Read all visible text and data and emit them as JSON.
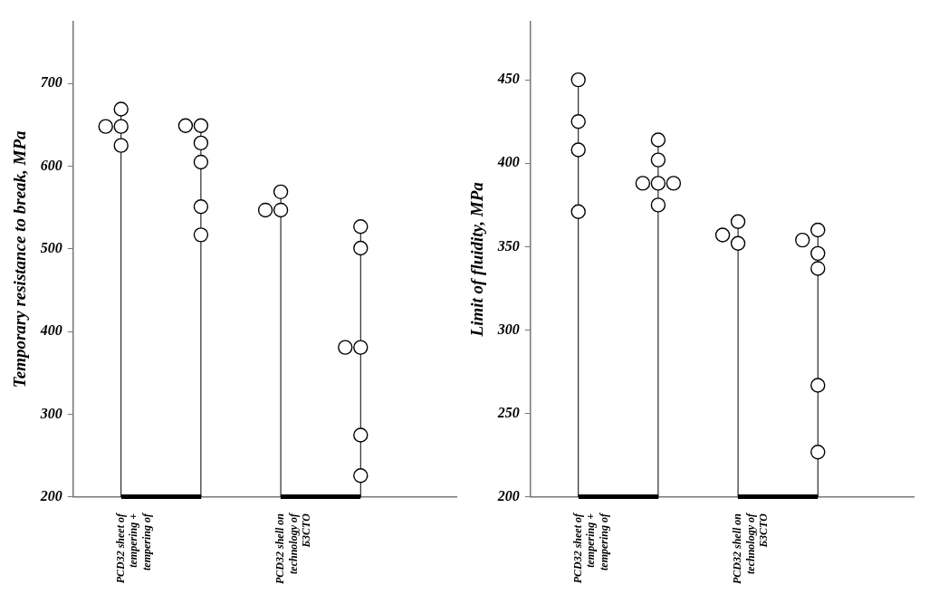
{
  "chart_data": [
    {
      "type": "lollipop",
      "ylabel": "Temporary resistance to break, MPa",
      "marker": "circle",
      "categories": [
        "PCD32 sheet of tempering + tempering of",
        null,
        "PCD32 shell on technology of Б3СТО",
        null
      ],
      "ylim": [
        200,
        775
      ],
      "yticks": [
        200,
        300,
        400,
        500,
        600,
        700
      ],
      "series": [
        {
          "color": "#000000",
          "values": [
            669,
            649,
            569,
            527
          ]
        },
        {
          "color": "#000000",
          "values": [
            648,
            649,
            547,
            501
          ]
        },
        {
          "color": "#000000",
          "values": [
            648,
            628,
            547,
            381
          ]
        },
        {
          "color": "#000000",
          "values": [
            625,
            605,
            null,
            381
          ]
        },
        {
          "color": "#000000",
          "values": [
            null,
            551,
            null,
            275
          ]
        },
        {
          "color": "#000000",
          "values": [
            null,
            517,
            null,
            226
          ]
        }
      ]
    },
    {
      "type": "lollipop",
      "ylabel": "Limit of fluidity, MPa",
      "marker": "circle",
      "categories": [
        "PCD32 sheet of tempering + tempering of",
        null,
        "PCD32 shell on technology of Б3СТО",
        null
      ],
      "ylim": [
        200,
        485
      ],
      "yticks": [
        200,
        250,
        300,
        350,
        400,
        450
      ],
      "series": [
        {
          "color": "#000000",
          "values": [
            450,
            414,
            365,
            360
          ]
        },
        {
          "color": "#000000",
          "values": [
            425,
            402,
            357,
            354
          ]
        },
        {
          "color": "#000000",
          "values": [
            408,
            388,
            352,
            346
          ]
        },
        {
          "color": "#000000",
          "values": [
            371,
            388,
            null,
            337
          ]
        },
        {
          "color": "#000000",
          "values": [
            null,
            388,
            null,
            267
          ]
        },
        {
          "color": "#000000",
          "values": [
            null,
            375,
            null,
            227
          ]
        }
      ]
    }
  ]
}
